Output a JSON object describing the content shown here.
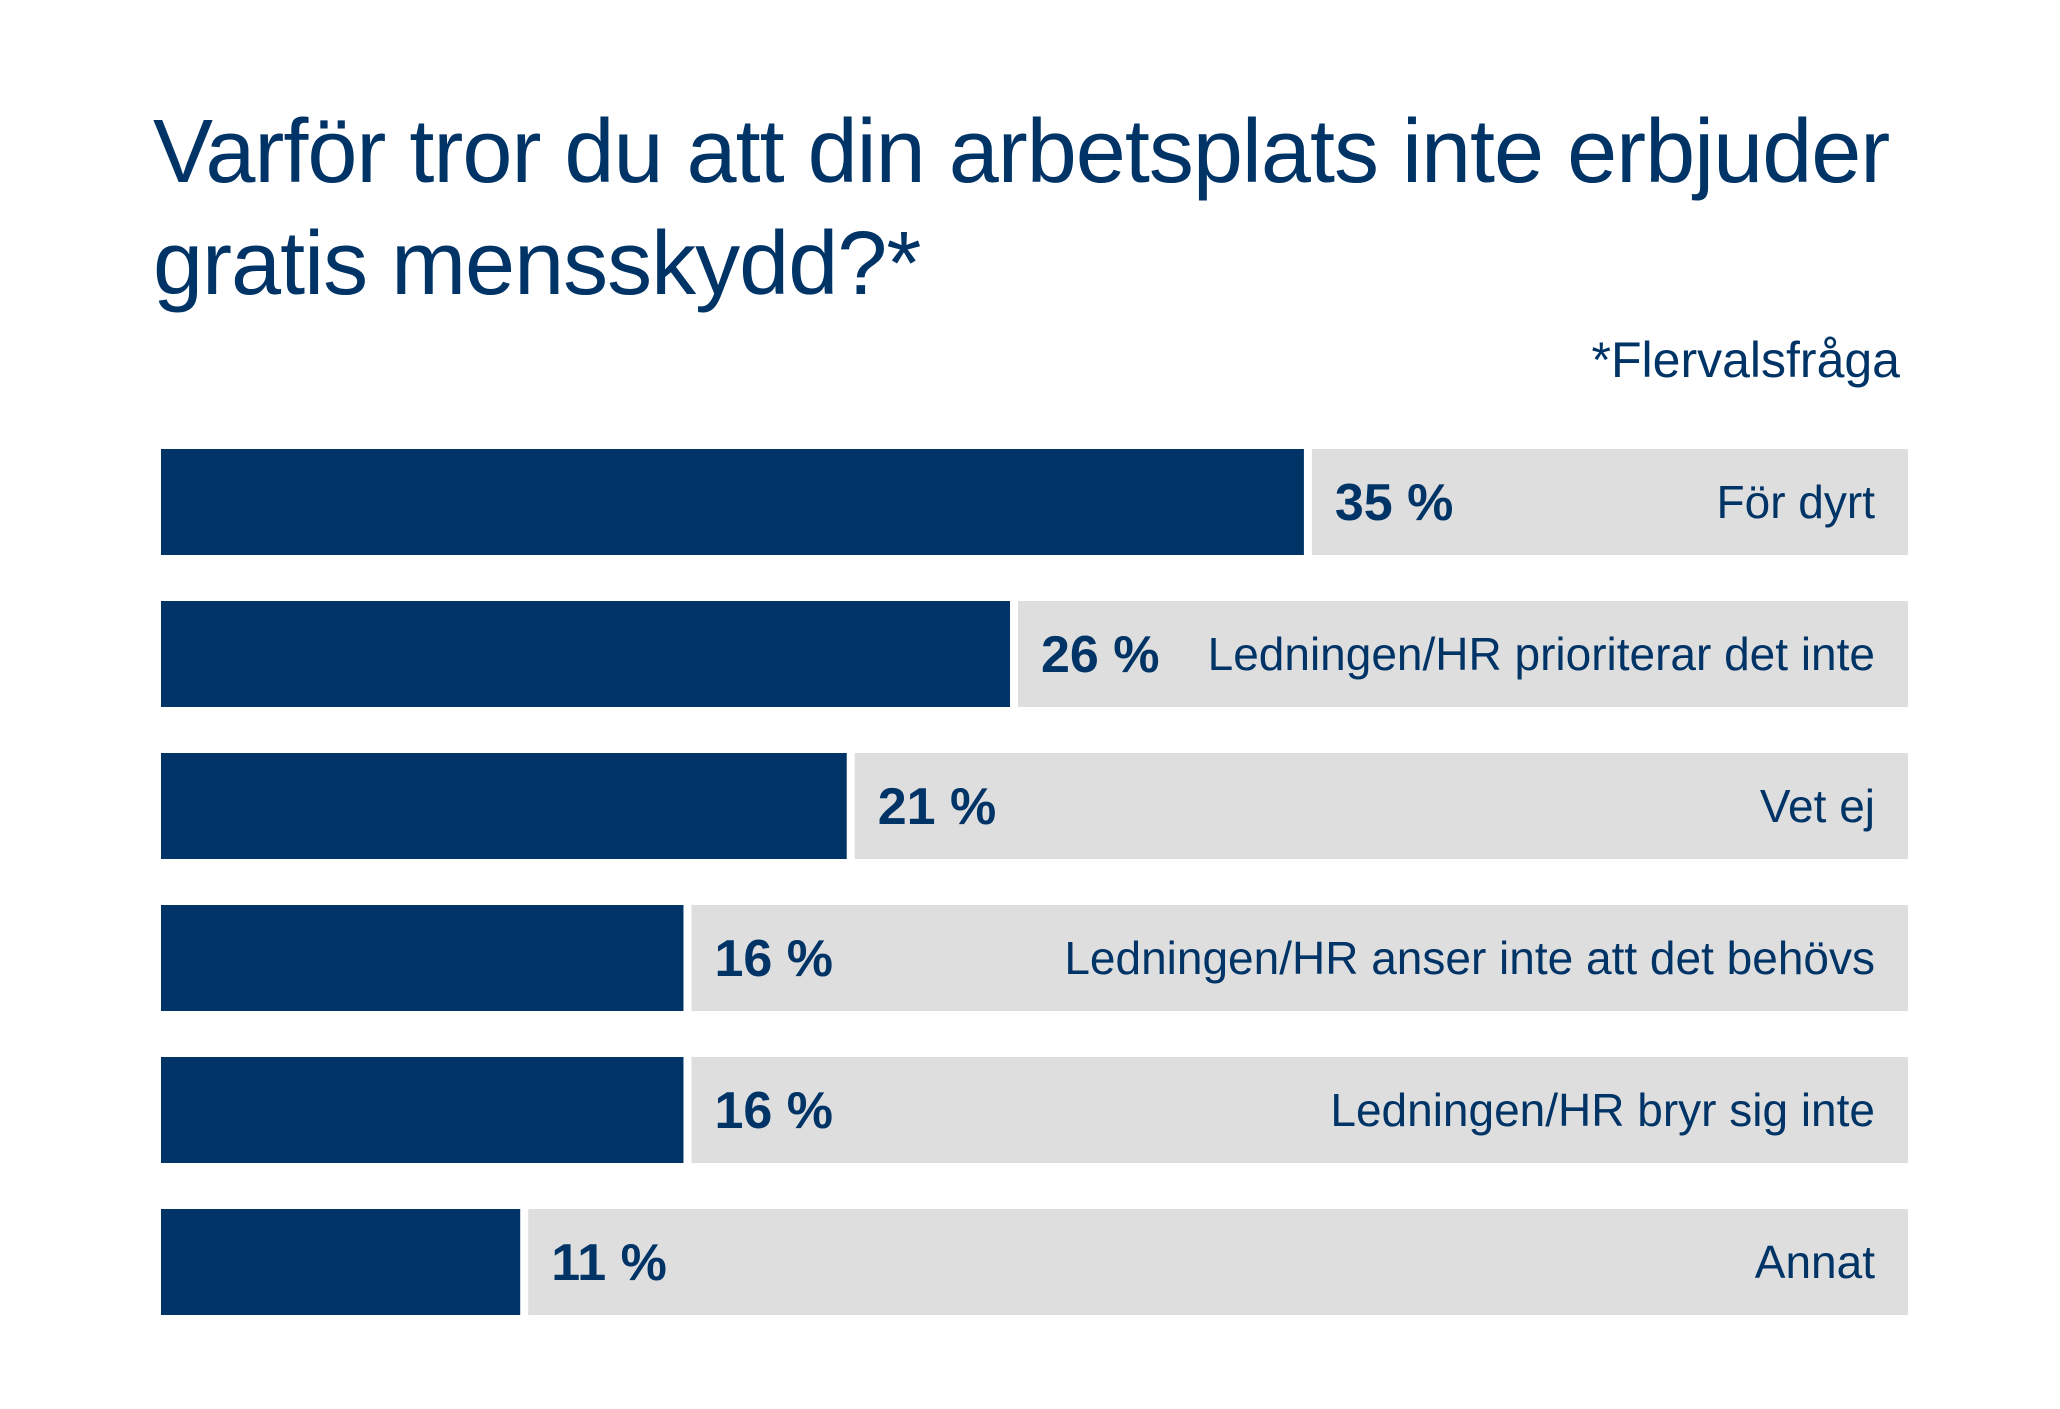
{
  "title": "Varför tror du att din arbetsplats inte erbjuder gratis mensskydd?*",
  "footnote": "*Flervalsfråga",
  "colors": {
    "bar": "#003366",
    "track": "#dedede",
    "text": "#003366"
  },
  "chart_data": {
    "type": "bar",
    "orientation": "horizontal",
    "title": "Varför tror du att din arbetsplats inte erbjuder gratis mensskydd?*",
    "subtitle": "*Flervalsfråga",
    "categories": [
      "För dyrt",
      "Ledningen/HR prioriterar det inte",
      "Vet ej",
      "Ledningen/HR anser inte att det behövs",
      "Ledningen/HR bryr sig inte",
      "Annat"
    ],
    "values": [
      35,
      26,
      21,
      16,
      16,
      11
    ],
    "value_labels": [
      "35 %",
      "26 %",
      "21 %",
      "16 %",
      "16 %",
      "11 %"
    ],
    "unit": "%",
    "xlim": [
      0,
      53.5
    ],
    "xlabel": "",
    "ylabel": "",
    "grid": false,
    "legend": "none"
  }
}
